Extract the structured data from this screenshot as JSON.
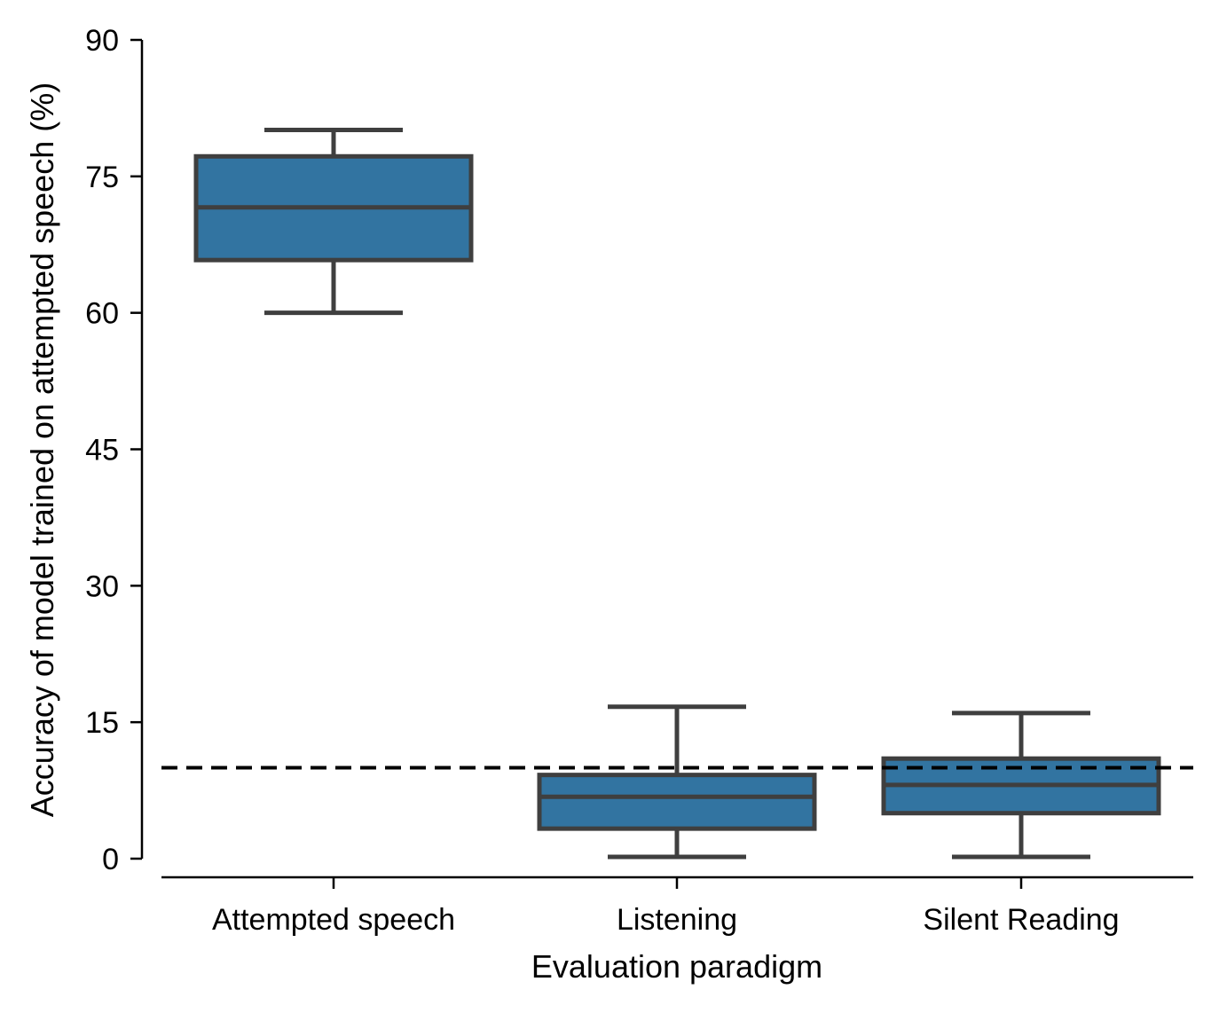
{
  "chart_data": {
    "type": "box",
    "xlabel": "Evaluation paradigm",
    "ylabel": "Accuracy of model trained on attempted speech (%)",
    "ylim": [
      0,
      90
    ],
    "yticks": [
      "0",
      "15",
      "30",
      "45",
      "60",
      "75",
      "90"
    ],
    "categories": [
      "Attempted speech",
      "Listening",
      "Silent Reading"
    ],
    "boxes": [
      {
        "category": "Attempted speech",
        "whisker_low": 60,
        "q1": 65.8,
        "median": 71.6,
        "q3": 77.2,
        "whisker_high": 80.1
      },
      {
        "category": "Listening",
        "whisker_low": 0.2,
        "q1": 3.3,
        "median": 6.8,
        "q3": 9.2,
        "whisker_high": 16.7
      },
      {
        "category": "Silent Reading",
        "whisker_low": 0.2,
        "q1": 5.0,
        "median": 8.1,
        "q3": 11.0,
        "whisker_high": 16.0
      }
    ],
    "reference_line": {
      "y": 10,
      "style": "dashed"
    },
    "grid": false,
    "colors": {
      "box_fill": "#3274a1",
      "box_edge": "#3f3f3f",
      "axis": "#000000",
      "reference_line": "#000000"
    }
  }
}
